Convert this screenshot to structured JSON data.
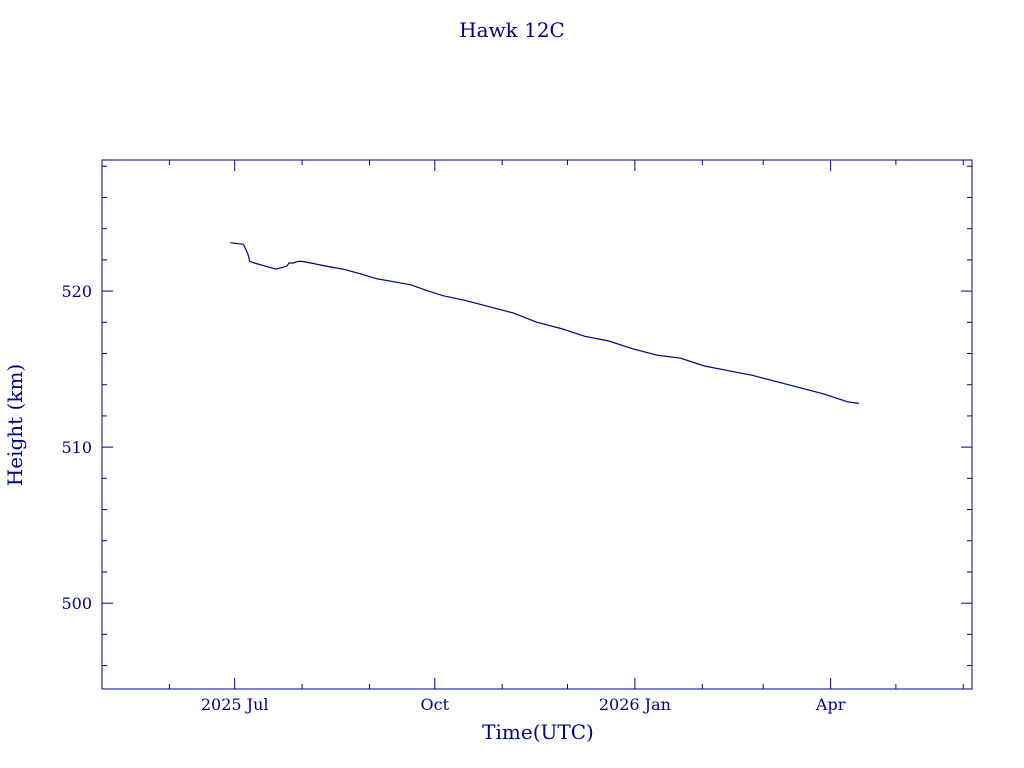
{
  "chart_data": {
    "type": "line",
    "title": "Hawk 12C",
    "xlabel": "Time(UTC)",
    "ylabel": "Height (km)",
    "x_unit": "date",
    "xlim": [
      "2025-05-01",
      "2026-06-05"
    ],
    "ylim": [
      494.5,
      528.4
    ],
    "x_tick_labels": [
      {
        "date": "2025-07-01",
        "label": "2025 Jul"
      },
      {
        "date": "2025-10-01",
        "label": "Oct"
      },
      {
        "date": "2026-01-01",
        "label": "2026 Jan"
      },
      {
        "date": "2026-04-01",
        "label": "Apr"
      }
    ],
    "y_tick_labels": [
      500,
      510,
      520
    ],
    "grid": false,
    "colors": {
      "foreground": "#00008b",
      "background": "#ffffff"
    },
    "series": [
      {
        "x": [
          "2025-06-29",
          "2025-07-05",
          "2025-07-07",
          "2025-07-08",
          "2025-07-10",
          "2025-07-15",
          "2025-07-20",
          "2025-07-25",
          "2025-07-26",
          "2025-07-28",
          "2025-07-30",
          "2025-08-01",
          "2025-08-05",
          "2025-08-12",
          "2025-08-20",
          "2025-08-28",
          "2025-09-04",
          "2025-09-12",
          "2025-09-20",
          "2025-09-28",
          "2025-10-05",
          "2025-10-15",
          "2025-10-26",
          "2025-11-06",
          "2025-11-17",
          "2025-11-28",
          "2025-12-09",
          "2025-12-20",
          "2025-12-31",
          "2026-01-11",
          "2026-01-22",
          "2026-02-02",
          "2026-02-13",
          "2026-02-24",
          "2026-03-07",
          "2026-03-18",
          "2026-03-29",
          "2026-04-09",
          "2026-04-14"
        ],
        "y": [
          523.1,
          523.0,
          522.4,
          521.9,
          521.8,
          521.6,
          521.4,
          521.6,
          521.8,
          521.8,
          521.9,
          521.9,
          521.8,
          521.6,
          521.4,
          521.1,
          520.8,
          520.6,
          520.4,
          520.0,
          519.7,
          519.4,
          519.0,
          518.6,
          518.0,
          517.6,
          517.1,
          516.8,
          516.3,
          515.9,
          515.7,
          515.2,
          514.9,
          514.6,
          514.2,
          513.8,
          513.4,
          512.9,
          512.8
        ]
      }
    ]
  }
}
